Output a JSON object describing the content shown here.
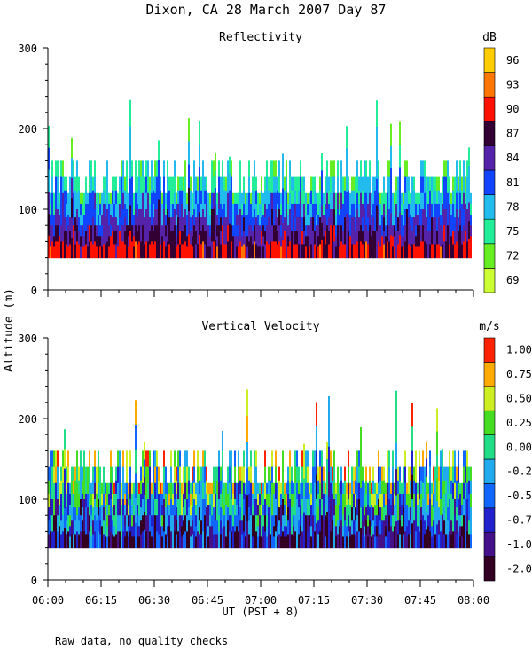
{
  "title": "Dixon, CA 28 March 2007  Day  87",
  "footnote": "Raw data, no quality checks",
  "ylabel": "Altitude (m)",
  "xlabel": "UT  (PST + 8)",
  "chart_data": [
    {
      "type": "heatmap",
      "title": "Reflectivity",
      "ylim": [
        0,
        300
      ],
      "yticks": [
        0,
        100,
        200,
        300
      ],
      "xlim_hours": [
        6.0,
        8.0
      ],
      "xticks": [
        "06:00",
        "06:15",
        "06:30",
        "06:45",
        "07:00",
        "07:15",
        "07:30",
        "07:45",
        "08:00"
      ],
      "data_floor_m": 40,
      "typical_top_m": [
        120,
        160
      ],
      "max_top_m": 240,
      "colorbar": {
        "unit": "dB",
        "levels": [
          "69",
          "72",
          "75",
          "78",
          "81",
          "84",
          "87",
          "90",
          "93",
          "96"
        ],
        "colors": [
          "#ccff33",
          "#66ee22",
          "#22ee99",
          "#22bbee",
          "#1144ff",
          "#5522aa",
          "#330033",
          "#ff1100",
          "#ff7700",
          "#ffcc00"
        ]
      }
    },
    {
      "type": "heatmap",
      "title": "Vertical Velocity",
      "ylim": [
        0,
        300
      ],
      "yticks": [
        0,
        100,
        200,
        300
      ],
      "xlim_hours": [
        6.0,
        8.0
      ],
      "xticks": [
        "06:00",
        "06:15",
        "06:30",
        "06:45",
        "07:00",
        "07:15",
        "07:30",
        "07:45",
        "08:00"
      ],
      "data_floor_m": 40,
      "typical_top_m": [
        120,
        160
      ],
      "max_top_m": 240,
      "colorbar": {
        "unit": "m/s",
        "levels": [
          "-2.00",
          "-1.00",
          "-0.75",
          "-0.50",
          "-0.25",
          "0.00",
          "0.25",
          "0.50",
          "0.75",
          "1.00"
        ],
        "colors": [
          "#330022",
          "#441188",
          "#2222cc",
          "#1166ff",
          "#22aaee",
          "#22dd88",
          "#44dd22",
          "#ccee22",
          "#ffaa00",
          "#ff2200"
        ]
      }
    }
  ]
}
